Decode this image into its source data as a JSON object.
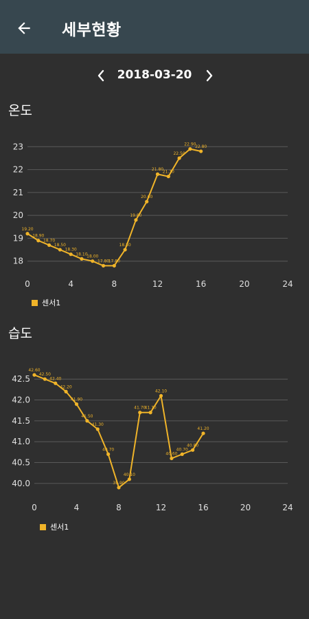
{
  "appbar": {
    "title": "세부현황",
    "back_icon": "arrow-left-icon"
  },
  "datebar": {
    "date": "2018-03-20",
    "prev_icon": "chevron-left-icon",
    "next_icon": "chevron-right-icon"
  },
  "accent_color": "#f0b429",
  "charts": {
    "temperature": {
      "title": "온도"
    },
    "humidity": {
      "title": "습도"
    }
  },
  "chart_data": [
    {
      "type": "line",
      "title": "온도",
      "xlim": [
        0,
        24
      ],
      "ylim": [
        17.6,
        23.4
      ],
      "x_ticks": [
        0,
        4,
        8,
        12,
        16,
        20,
        24
      ],
      "y_ticks": [
        18,
        19,
        20,
        21,
        22,
        23
      ],
      "y_tick_labels": [
        "18",
        "19",
        "20",
        "21",
        "22",
        "23"
      ],
      "grid": "horizontal",
      "legend": "bottom-left",
      "series": [
        {
          "name": "센서1",
          "color": "#f0b429",
          "x": [
            0,
            1,
            2,
            3,
            4,
            5,
            6,
            7,
            8,
            9,
            10,
            11,
            12,
            13,
            14,
            15,
            16
          ],
          "y": [
            19.2,
            18.9,
            18.7,
            18.5,
            18.3,
            18.1,
            18.0,
            17.8,
            17.8,
            18.5,
            19.8,
            20.6,
            21.8,
            21.7,
            22.5,
            22.9,
            22.8
          ],
          "labels": [
            "19.20",
            "18.90",
            "18.70",
            "18.50",
            "18.30",
            "18.10",
            "18.00",
            "17.80",
            "17.80",
            "18.50",
            "19.80",
            "20.60",
            "21.80",
            "21.70",
            "22.50",
            "22.90",
            "22.80"
          ]
        }
      ]
    },
    {
      "type": "line",
      "title": "습도",
      "xlim": [
        0,
        24
      ],
      "ylim": [
        39.8,
        42.8
      ],
      "x_ticks": [
        0,
        4,
        8,
        12,
        16,
        20,
        24
      ],
      "y_ticks": [
        40.0,
        40.5,
        41.0,
        41.5,
        42.0,
        42.5
      ],
      "y_tick_labels": [
        "40.0",
        "40.5",
        "41.0",
        "41.5",
        "42.0",
        "42.5"
      ],
      "grid": "horizontal",
      "legend": "bottom-left",
      "series": [
        {
          "name": "센서1",
          "color": "#f0b429",
          "x": [
            0,
            1,
            2,
            3,
            4,
            5,
            6,
            7,
            8,
            9,
            10,
            11,
            12,
            13,
            14,
            15,
            16
          ],
          "y": [
            42.6,
            42.5,
            42.4,
            42.2,
            41.9,
            41.5,
            41.3,
            40.7,
            39.9,
            40.1,
            41.7,
            41.7,
            42.1,
            40.6,
            40.7,
            40.8,
            41.2
          ],
          "labels": [
            "42.60",
            "42.50",
            "42.40",
            "42.20",
            "41.90",
            "41.50",
            "41.30",
            "40.70",
            "39.90",
            "40.10",
            "41.70",
            "41.70",
            "42.10",
            "40.60",
            "40.70",
            "40.80",
            "41.20"
          ]
        }
      ]
    }
  ]
}
